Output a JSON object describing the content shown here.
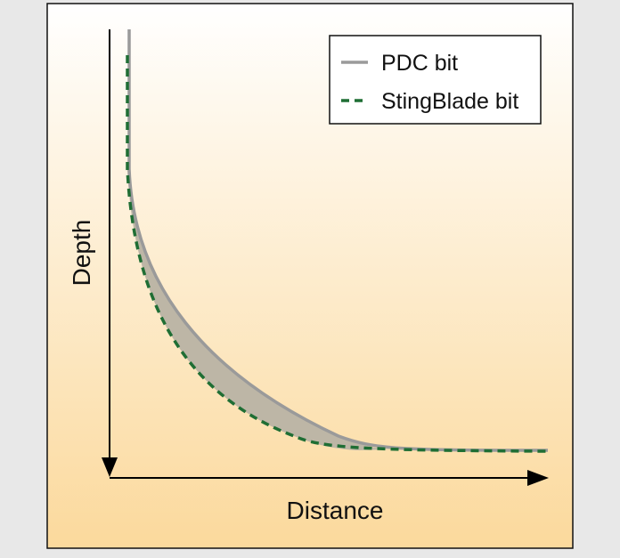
{
  "axes": {
    "y_label": "Depth",
    "x_label": "Distance"
  },
  "legend": {
    "items": [
      {
        "label": "PDC bit"
      },
      {
        "label": "StingBlade bit"
      }
    ]
  }
}
